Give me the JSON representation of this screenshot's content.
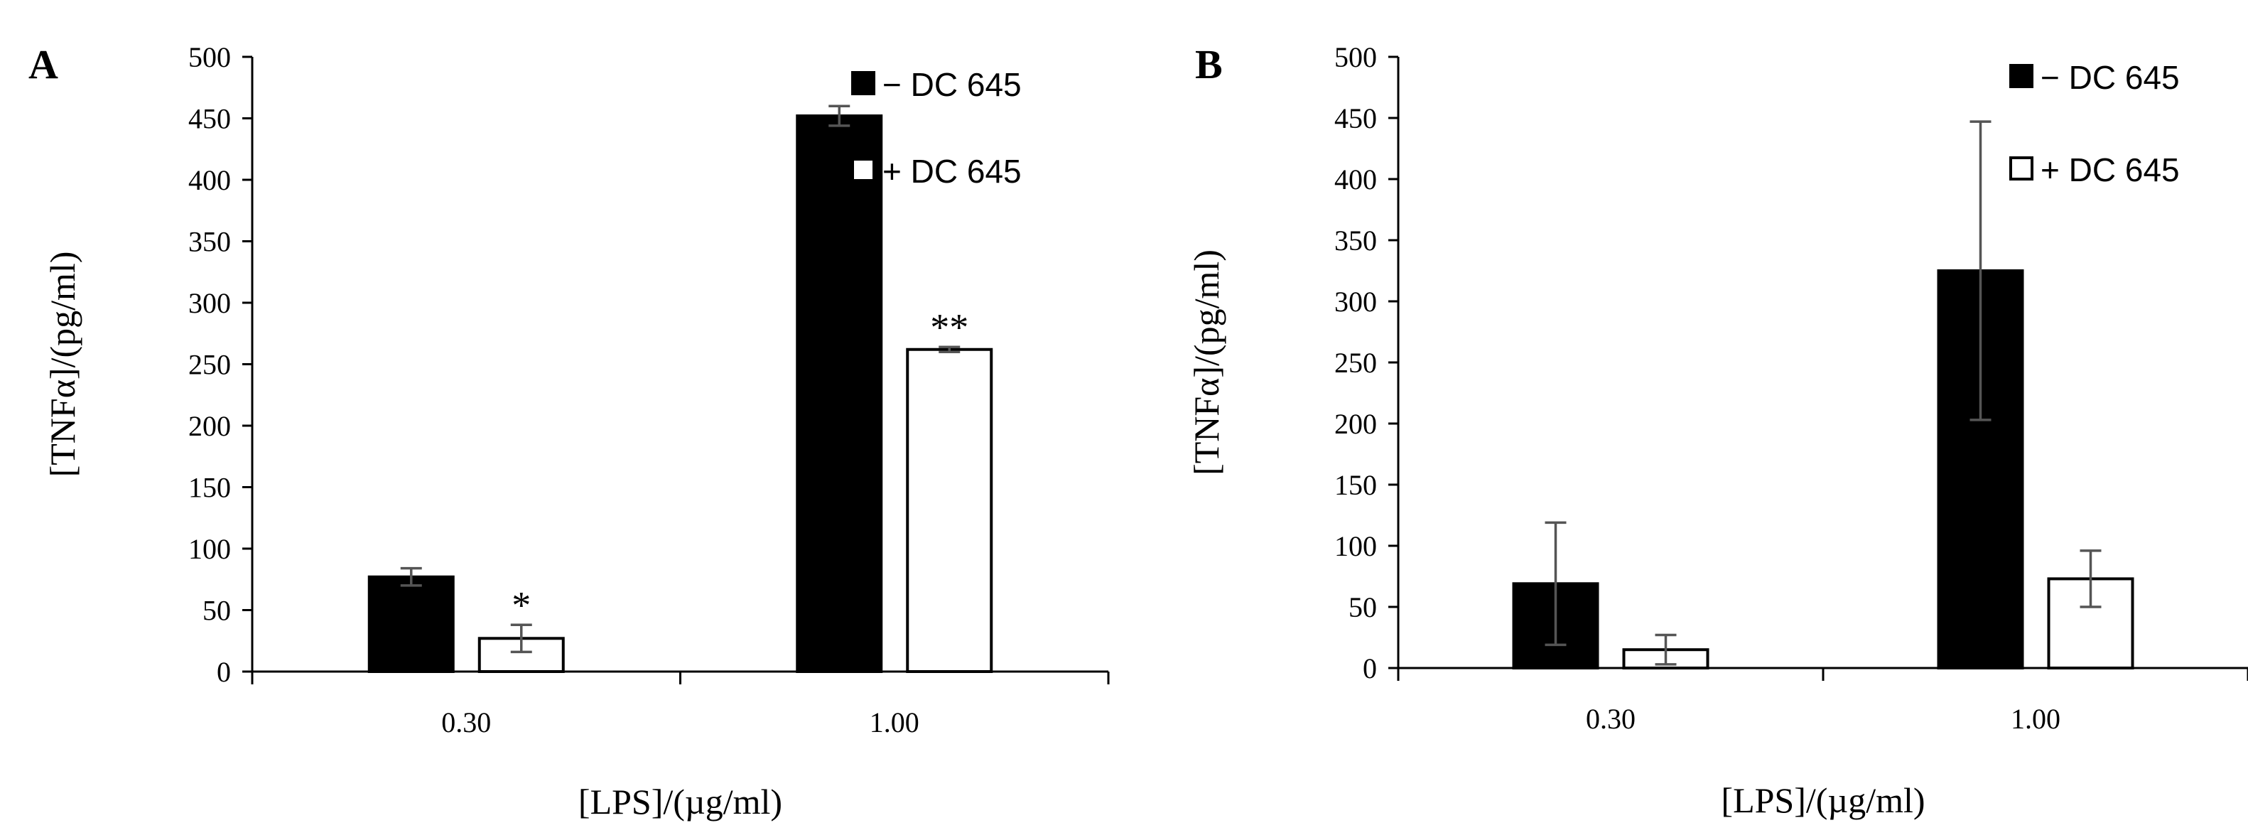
{
  "chart_data": [
    {
      "type": "bar",
      "panel_label": "A",
      "categories": [
        "0.30",
        "1.00"
      ],
      "xlabel": "[LPS]/(µg/ml)",
      "ylabel": "[TNFα]/(pg/ml)",
      "ylim": [
        0,
        500
      ],
      "yticks": [
        "0",
        "50",
        "100",
        "150",
        "200",
        "250",
        "300",
        "350",
        "400",
        "450",
        "500"
      ],
      "series": [
        {
          "name": "− DC 645",
          "color": "#000000",
          "values": [
            77,
            452
          ],
          "errors": [
            7,
            8
          ]
        },
        {
          "name": "+ DC 645",
          "color": "#ffffff",
          "values": [
            27,
            262
          ],
          "errors": [
            11,
            2
          ]
        }
      ],
      "annotations": [
        {
          "series": 1,
          "category": 0,
          "text": "*"
        },
        {
          "series": 1,
          "category": 1,
          "text": "**"
        }
      ],
      "legend_position": "top-right"
    },
    {
      "type": "bar",
      "panel_label": "B",
      "categories": [
        "0.30",
        "1.00"
      ],
      "xlabel": "[LPS]/(µg/ml)",
      "ylabel": "[TNFα]/(pg/ml)",
      "ylim": [
        0,
        500
      ],
      "yticks": [
        "0",
        "50",
        "100",
        "150",
        "200",
        "250",
        "300",
        "350",
        "400",
        "450",
        "500"
      ],
      "series": [
        {
          "name": "− DC 645",
          "color": "#000000",
          "values": [
            69,
            325
          ],
          "errors": [
            50,
            122
          ]
        },
        {
          "name": "+ DC 645",
          "color": "#ffffff",
          "values": [
            15,
            73
          ],
          "errors": [
            12,
            23
          ]
        }
      ],
      "annotations": [],
      "legend_position": "top-right"
    }
  ]
}
